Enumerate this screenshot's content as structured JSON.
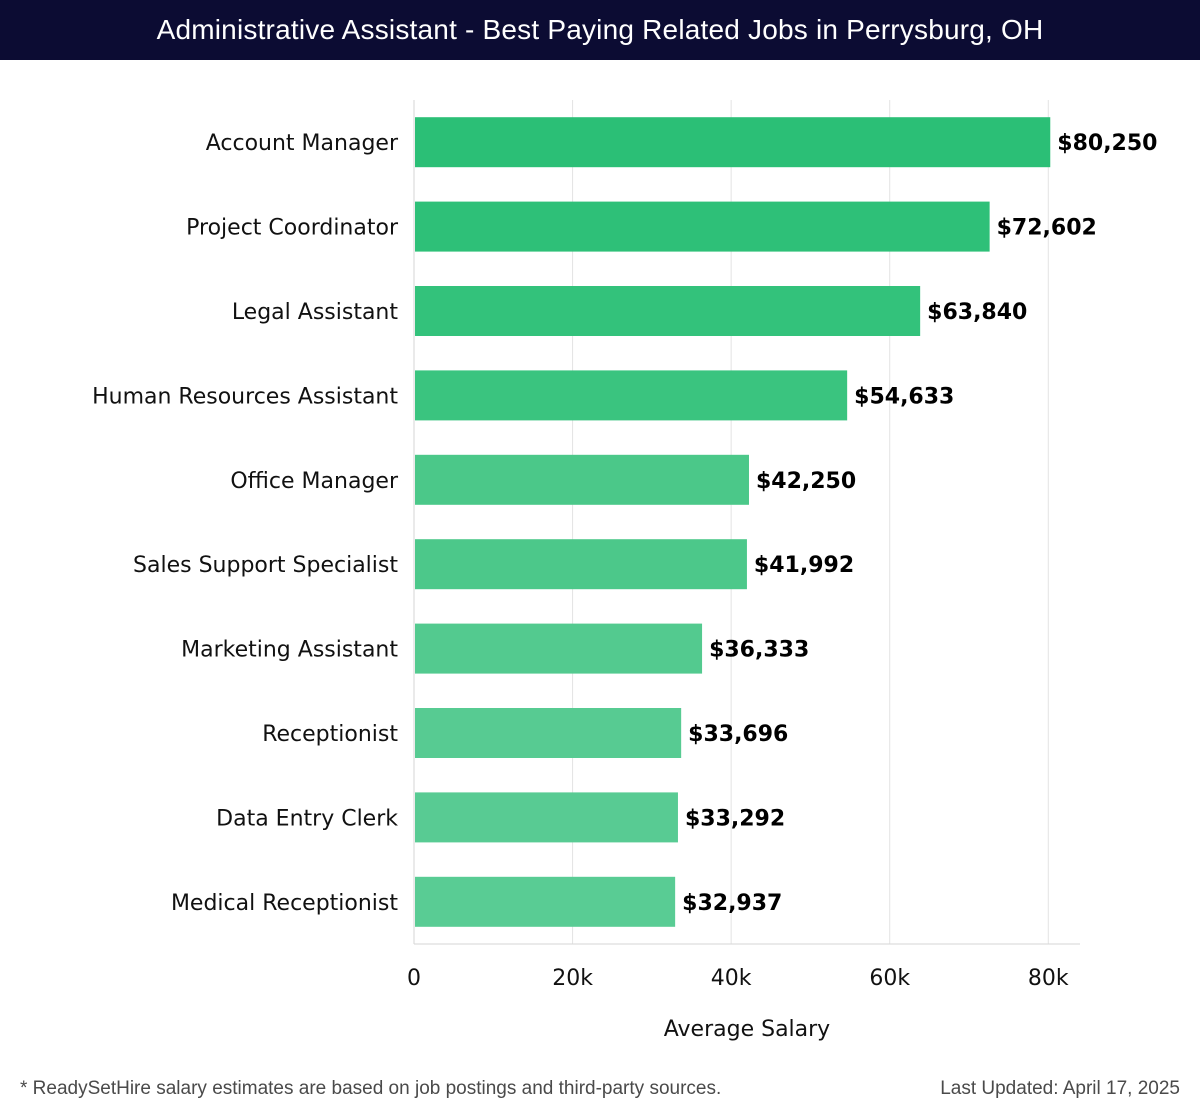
{
  "title": "Administrative Assistant - Best Paying Related Jobs in Perrysburg, OH",
  "chart_data": {
    "type": "bar",
    "orientation": "horizontal",
    "title": "Administrative Assistant - Best Paying Related Jobs in Perrysburg, OH",
    "xlabel": "Average Salary",
    "ylabel": "",
    "xlim": [
      0,
      84000
    ],
    "xticks": [
      0,
      20000,
      40000,
      60000,
      80000
    ],
    "xtick_labels": [
      "0",
      "20k",
      "40k",
      "60k",
      "80k"
    ],
    "grid": true,
    "categories": [
      "Account Manager",
      "Project Coordinator",
      "Legal Assistant",
      "Human Resources Assistant",
      "Office Manager",
      "Sales Support Specialist",
      "Marketing Assistant",
      "Receptionist",
      "Data Entry Clerk",
      "Medical Receptionist"
    ],
    "values": [
      80250,
      72602,
      63840,
      54633,
      42250,
      41992,
      36333,
      33696,
      33292,
      32937
    ],
    "value_labels": [
      "$80,250",
      "$72,602",
      "$63,840",
      "$54,633",
      "$42,250",
      "$41,992",
      "$36,333",
      "$33,696",
      "$33,292",
      "$32,937"
    ],
    "colors": [
      "#2bbf76",
      "#2ec078",
      "#33c27b",
      "#3ac47f",
      "#4bc889",
      "#4cc88a",
      "#53ca8f",
      "#57cb92",
      "#58cb93",
      "#59cc94"
    ]
  },
  "footer": {
    "note": "* ReadySetHire salary estimates are based on job postings and third-party sources.",
    "updated": "Last Updated: April 17, 2025"
  }
}
